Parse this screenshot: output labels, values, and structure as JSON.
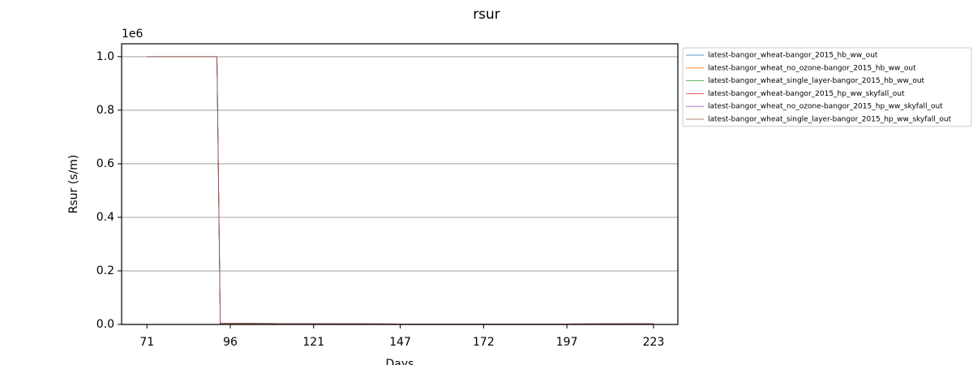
{
  "chart_data": {
    "type": "line",
    "title": "rsur",
    "x_label": "Days",
    "y_label": "Rsur (s/m)",
    "y_offset_label": "1e6",
    "x": [
      71,
      92,
      93,
      121,
      147,
      172,
      197,
      223
    ],
    "series": [
      {
        "name": "latest-bangor_wheat-bangor_2015_hb_ww_out",
        "color": "#1f77b4",
        "values": [
          1.0,
          1.0,
          0.004,
          0.003,
          0.002,
          0.002,
          0.002,
          0.003
        ]
      },
      {
        "name": "latest-bangor_wheat_no_ozone-bangor_2015_hb_ww_out",
        "color": "#ff7f0e",
        "values": [
          1.0,
          1.0,
          0.004,
          0.003,
          0.002,
          0.002,
          0.002,
          0.003
        ]
      },
      {
        "name": "latest-bangor_wheat_single_layer-bangor_2015_hb_ww_out",
        "color": "#2ca02c",
        "values": [
          1.0,
          1.0,
          0.004,
          0.003,
          0.002,
          0.002,
          0.002,
          0.003
        ]
      },
      {
        "name": "latest-bangor_wheat-bangor_2015_hp_ww_skyfall_out",
        "color": "#d62728",
        "values": [
          1.0,
          1.0,
          0.004,
          0.003,
          0.002,
          0.002,
          0.002,
          0.003
        ]
      },
      {
        "name": "latest-bangor_wheat_no_ozone-bangor_2015_hp_ww_skyfall_out",
        "color": "#9467bd",
        "values": [
          1.0,
          1.0,
          0.004,
          0.003,
          0.002,
          0.002,
          0.002,
          0.003
        ]
      },
      {
        "name": "latest-bangor_wheat_single_layer-bangor_2015_hp_ww_skyfall_out",
        "color": "#8c564b",
        "values": [
          1.0,
          1.0,
          0.004,
          0.003,
          0.002,
          0.002,
          0.002,
          0.003
        ]
      }
    ],
    "xlim": [
      63.4,
      230.3
    ],
    "xticks": [
      71,
      96,
      121,
      147,
      172,
      197,
      223
    ],
    "ylim": [
      0,
      1.048
    ],
    "yticks": [
      {
        "value": 0,
        "label": "0.0"
      },
      {
        "value": 0.2,
        "label": "0.2"
      },
      {
        "value": 0.4,
        "label": "0.4"
      },
      {
        "value": 0.6,
        "label": "0.6"
      },
      {
        "value": 0.8,
        "label": "0.8"
      },
      {
        "value": 1.0,
        "label": "1.0"
      }
    ],
    "grid": "y",
    "legend": "outside right"
  }
}
